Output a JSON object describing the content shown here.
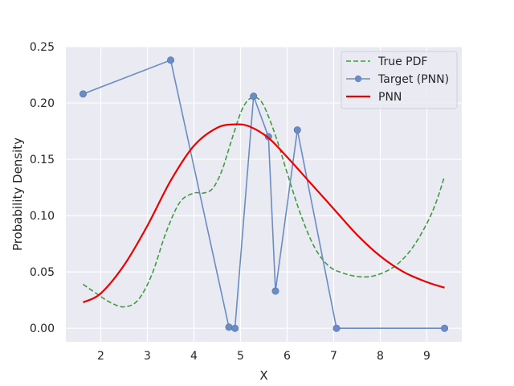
{
  "chart_data": {
    "type": "line",
    "title": "",
    "xlabel": "X",
    "ylabel": "Probability Density",
    "xlim": [
      1.25,
      9.75
    ],
    "ylim": [
      -0.012,
      0.25
    ],
    "xticks": [
      2,
      3,
      4,
      5,
      6,
      7,
      8,
      9
    ],
    "yticks": [
      0.0,
      0.05,
      0.1,
      0.15,
      0.2,
      0.25
    ],
    "ytick_labels": [
      "0.00",
      "0.05",
      "0.10",
      "0.15",
      "0.20",
      "0.25"
    ],
    "grid": true,
    "legend_position": "top-right",
    "colors": {
      "plot_background": "#eaeaf2",
      "grid": "#ffffff",
      "true_pdf": "#3f9c3f",
      "target": "#6a8cc4",
      "pnn": "#ee0000"
    },
    "series": [
      {
        "name": "True PDF",
        "style": "dashed",
        "x": [
          1.62,
          1.9,
          2.2,
          2.5,
          2.8,
          3.1,
          3.4,
          3.7,
          4.0,
          4.2,
          4.4,
          4.6,
          4.8,
          5.0,
          5.15,
          5.3,
          5.45,
          5.6,
          5.8,
          6.0,
          6.3,
          6.6,
          6.9,
          7.2,
          7.5,
          7.8,
          8.1,
          8.4,
          8.7,
          9.0,
          9.2,
          9.38
        ],
        "y": [
          0.039,
          0.031,
          0.023,
          0.019,
          0.025,
          0.048,
          0.085,
          0.112,
          0.12,
          0.12,
          0.124,
          0.14,
          0.166,
          0.191,
          0.202,
          0.205,
          0.201,
          0.188,
          0.165,
          0.138,
          0.1,
          0.071,
          0.055,
          0.049,
          0.046,
          0.046,
          0.05,
          0.058,
          0.072,
          0.093,
          0.112,
          0.135
        ]
      },
      {
        "name": "Target (PNN)",
        "style": "line-markers",
        "x": [
          1.62,
          3.5,
          4.75,
          4.88,
          5.28,
          5.6,
          5.75,
          6.22,
          7.06,
          9.38
        ],
        "y": [
          0.208,
          0.238,
          0.001,
          0.0,
          0.206,
          0.17,
          0.033,
          0.176,
          0.0,
          0.0
        ]
      },
      {
        "name": "PNN",
        "style": "solid",
        "x": [
          1.62,
          2.0,
          2.5,
          3.0,
          3.5,
          4.0,
          4.5,
          4.9,
          5.2,
          5.6,
          6.0,
          6.5,
          7.0,
          7.5,
          8.0,
          8.5,
          9.0,
          9.38
        ],
        "y": [
          0.023,
          0.031,
          0.056,
          0.091,
          0.131,
          0.162,
          0.178,
          0.181,
          0.179,
          0.169,
          0.152,
          0.129,
          0.106,
          0.083,
          0.064,
          0.05,
          0.041,
          0.036
        ]
      }
    ]
  }
}
